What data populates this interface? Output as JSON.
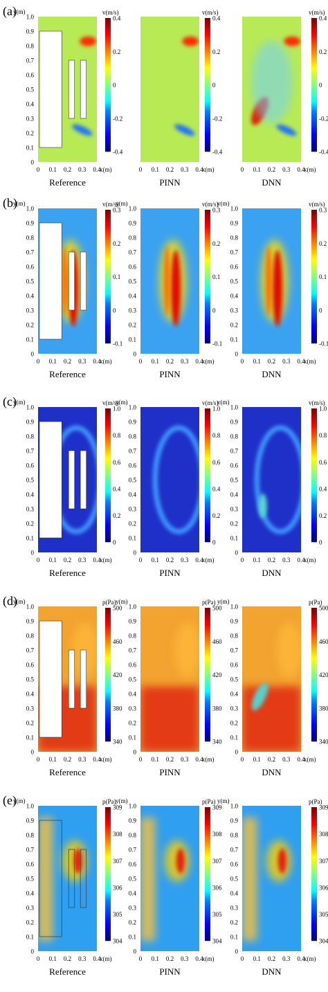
{
  "figure": {
    "panels": [
      {
        "letter": "(a)",
        "quantity": "v(m/s)",
        "ticks": [
          "0.4",
          "0.2",
          "0",
          "-0.2",
          "-0.4"
        ],
        "mask": "a",
        "subplots": [
          {
            "caption": "Reference",
            "y_label": "y(m)",
            "y_ticks": [
              "1.0",
              "0.9",
              "0.8",
              "0.7",
              "0.6",
              "0.5",
              "0.4",
              "0.3",
              "0.2",
              "0.1",
              "0"
            ],
            "x_ticks": [
              "0",
              "0.1",
              "0.2",
              "0.3",
              "0.4"
            ],
            "x_label": "x(m)"
          },
          {
            "caption": "PINN",
            "y_label": "",
            "y_ticks": [],
            "x_ticks": [
              "0",
              "0.1",
              "0.2",
              "0.3",
              "0.4"
            ],
            "x_label": "x(m)"
          },
          {
            "caption": "DNN",
            "y_label": "",
            "y_ticks": [],
            "x_ticks": [
              "0",
              "0.1",
              "0.2",
              "0.3",
              "0.4"
            ],
            "x_label": "x(m)"
          }
        ]
      },
      {
        "letter": "(b)",
        "quantity": "v(m/s)",
        "ticks": [
          "0.3",
          "0.2",
          "0.1",
          "0",
          "-0.1"
        ],
        "mask": "b",
        "subplots": [
          {
            "caption": "Reference",
            "y_label": "y(m)",
            "y_ticks": [
              "1.0",
              "0.9",
              "0.8",
              "0.7",
              "0.6",
              "0.5",
              "0.4",
              "0.3",
              "0.2",
              "0.1",
              "0"
            ],
            "x_ticks": [
              "0",
              "0.1",
              "0.2",
              "0.3",
              "0.4"
            ],
            "x_label": "x(m)"
          },
          {
            "caption": "PINN",
            "y_label": "y(m)",
            "y_ticks": [
              "1.0",
              "0.9",
              "0.8",
              "0.7",
              "0.6",
              "0.5",
              "0.4",
              "0.3",
              "0.2",
              "0.1",
              "0"
            ],
            "x_ticks": [
              "0",
              "0.1",
              "0.2",
              "0.3",
              "0.4"
            ],
            "x_label": "x(m)"
          },
          {
            "caption": "DNN",
            "y_label": "y(m)",
            "y_ticks": [
              "1.0",
              "0.9",
              "0.8",
              "0.7",
              "0.6",
              "0.5",
              "0.4",
              "0.3",
              "0.2",
              "0.1",
              "0"
            ],
            "x_ticks": [
              "0",
              "0.1",
              "0.2",
              "0.3",
              "0.4"
            ],
            "x_label": "x(m)"
          }
        ]
      },
      {
        "letter": "(c)",
        "quantity": "v(m/s)",
        "ticks": [
          "1.0",
          "0.8",
          "0.6",
          "0.4",
          "0.2",
          "0"
        ],
        "mask": "a",
        "subplots": [
          {
            "caption": "Reference",
            "y_label": "y(m)",
            "y_ticks": [
              "1.0",
              "0.9",
              "0.8",
              "0.7",
              "0.6",
              "0.5",
              "0.4",
              "0.3",
              "0.2",
              "0.1",
              "0"
            ],
            "x_ticks": [
              "0",
              "0.1",
              "0.2",
              "0.3",
              "0.4"
            ],
            "x_label": "x(m)"
          },
          {
            "caption": "PINN",
            "y_label": "y(m)",
            "y_ticks": [
              "1.0",
              "0.9",
              "0.8",
              "0.7",
              "0.6",
              "0.5",
              "0.4",
              "0.3",
              "0.2",
              "0.1",
              "0"
            ],
            "x_ticks": [
              "0",
              "0.1",
              "0.2",
              "0.3",
              "0.4"
            ],
            "x_label": "x(m)"
          },
          {
            "caption": "DNN",
            "y_label": "y(m)",
            "y_ticks": [
              "1.0",
              "0.9",
              "0.8",
              "0.7",
              "0.6",
              "0.5",
              "0.4",
              "0.3",
              "0.2",
              "0.1",
              "0"
            ],
            "x_ticks": [
              "0",
              "0.1",
              "0.2",
              "0.3",
              "0.4"
            ],
            "x_label": "x(m)"
          }
        ]
      },
      {
        "letter": "(d)",
        "quantity": "p(Pa)",
        "ticks": [
          "500",
          "460",
          "420",
          "380",
          "340"
        ],
        "mask": "a",
        "subplots": [
          {
            "caption": "Reference",
            "y_label": "y(m)",
            "y_ticks": [
              "1.0",
              "0.9",
              "0.8",
              "0.7",
              "0.6",
              "0.5",
              "0.4",
              "0.3",
              "0.2",
              "0.1",
              "0"
            ],
            "x_ticks": [
              "0",
              "0.1",
              "0.2",
              "0.3",
              "0.4"
            ],
            "x_label": "x(m)"
          },
          {
            "caption": "PINN",
            "y_label": "y(m)",
            "y_ticks": [
              "1.0",
              "0.9",
              "0.8",
              "0.7",
              "0.6",
              "0.5",
              "0.4",
              "0.3",
              "0.2",
              "0.1",
              "0"
            ],
            "x_ticks": [
              "0",
              "0.1",
              "0.2",
              "0.3",
              "0.4"
            ],
            "x_label": "x(m)"
          },
          {
            "caption": "DNN",
            "y_label": "y(m)",
            "y_ticks": [
              "1.0",
              "0.9",
              "0.8",
              "0.7",
              "0.6",
              "0.5",
              "0.4",
              "0.3",
              "0.2",
              "0.1",
              "0"
            ],
            "x_ticks": [
              "0",
              "0.1",
              "0.2",
              "0.3",
              "0.4"
            ],
            "x_label": "x(m)"
          }
        ]
      },
      {
        "letter": "(e)",
        "quantity": "p(Pa)",
        "ticks": [
          "309",
          "308",
          "307",
          "306",
          "305",
          "304"
        ],
        "mask": "outline",
        "subplots": [
          {
            "caption": "Reference",
            "y_label": "y(m)",
            "y_ticks": [
              "1.0",
              "0.9",
              "0.8",
              "0.7",
              "0.6",
              "0.5",
              "0.4",
              "0.3",
              "0.2",
              "0.1",
              "0"
            ],
            "x_ticks": [
              "0",
              "0.1",
              "0.2",
              "0.3",
              "0.4"
            ],
            "x_label": "x(m)"
          },
          {
            "caption": "PINN",
            "y_label": "y(m)",
            "y_ticks": [
              "1.0",
              "0.9",
              "0.8",
              "0.7",
              "0.6",
              "0.5",
              "0.4",
              "0.3",
              "0.2",
              "0.1",
              "0"
            ],
            "x_ticks": [
              "0",
              "0.1",
              "0.2",
              "0.3",
              "0.4"
            ],
            "x_label": "x(m)"
          },
          {
            "caption": "DNN",
            "y_label": "y(m)",
            "y_ticks": [
              "1.0",
              "0.9",
              "0.8",
              "0.7",
              "0.6",
              "0.5",
              "0.4",
              "0.3",
              "0.2",
              "0.1",
              "0"
            ],
            "x_ticks": [
              "0",
              "0.1",
              "0.2",
              "0.3",
              "0.4"
            ],
            "x_label": "x(m)"
          }
        ]
      }
    ]
  },
  "colors": {
    "jet": [
      "#00007f",
      "#0000ff",
      "#0080ff",
      "#00ffff",
      "#80ff80",
      "#ffff00",
      "#ff8000",
      "#ff0000",
      "#7f0000"
    ],
    "background": {
      "a": "#b8ea55",
      "b": "#3aa2f0",
      "c": "#1e30c8",
      "d": "#f2a330",
      "e": "#2f9ff0"
    },
    "accent": {
      "a": "#ff3300",
      "b": "#ff2200",
      "c": "#3c8ff5",
      "d": "#d83010",
      "e": "#e82010"
    }
  }
}
